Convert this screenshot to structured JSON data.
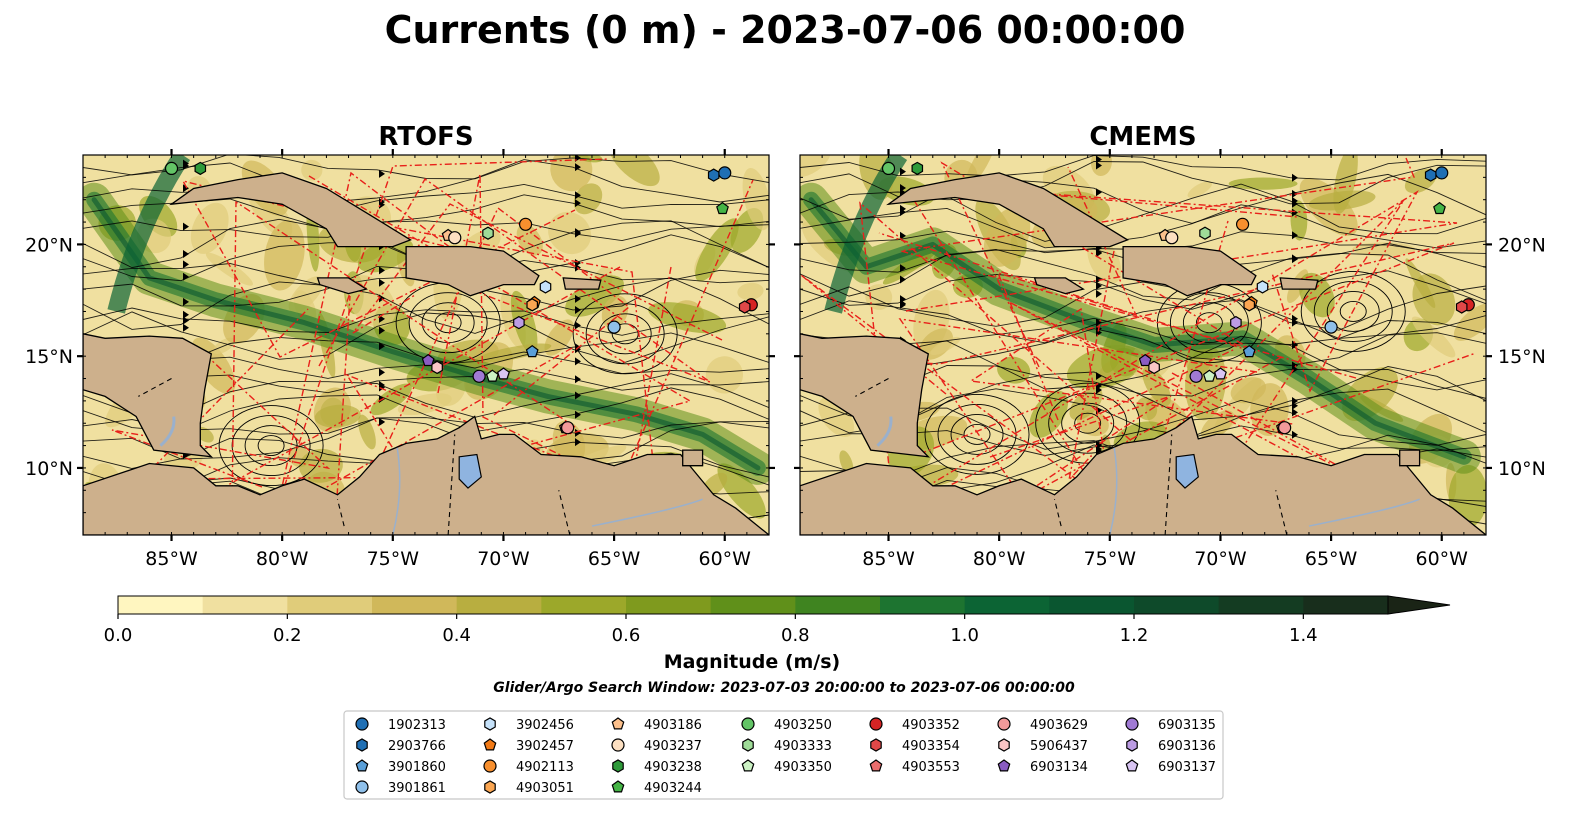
{
  "figure": {
    "title": "Currents (0 m) - 2023-07-06 00:00:00",
    "search_window": "Glider/Argo Search Window: 2023-07-03 20:00:00 to 2023-07-06 00:00:00"
  },
  "colors": {
    "land": "#cdb08c",
    "lake": "#8fb4e0",
    "border_red": "#e8201a",
    "streamline": "#000000",
    "colormap": [
      "#fff6c0",
      "#f0e0a0",
      "#e0cc7a",
      "#d0b85a",
      "#b8ae40",
      "#9ca82a",
      "#7f9a1e",
      "#60901a",
      "#3f8420",
      "#1d7430",
      "#0c6434",
      "#0a5630",
      "#0e4a2a",
      "#143c22",
      "#182e1c",
      "#1a2416"
    ]
  },
  "chart_data": [
    {
      "type": "map",
      "title": "RTOFS",
      "lon_range": [
        -89,
        -58
      ],
      "lat_range": [
        7,
        24
      ],
      "x_ticks": [
        -85,
        -80,
        -75,
        -70,
        -65,
        -60
      ],
      "x_tick_labels": [
        "85°W",
        "80°W",
        "75°W",
        "70°W",
        "65°W",
        "60°W"
      ],
      "y_ticks": [
        10,
        15,
        20
      ],
      "y_tick_labels": [
        "10°N",
        "15°N",
        "20°N"
      ],
      "y_labels_side": "left"
    },
    {
      "type": "map",
      "title": "CMEMS",
      "lon_range": [
        -89,
        -58
      ],
      "lat_range": [
        7,
        24
      ],
      "x_ticks": [
        -85,
        -80,
        -75,
        -70,
        -65,
        -60
      ],
      "x_tick_labels": [
        "85°W",
        "80°W",
        "75°W",
        "70°W",
        "65°W",
        "60°W"
      ],
      "y_ticks": [
        10,
        15,
        20
      ],
      "y_tick_labels": [
        "10°N",
        "15°N",
        "20°N"
      ],
      "y_labels_side": "right"
    }
  ],
  "colorbar": {
    "label": "Magnitude (m/s)",
    "min": 0,
    "max": 1.6,
    "step": 0.1,
    "extend": "max",
    "ticks": [
      0.0,
      0.2,
      0.4,
      0.6,
      0.8,
      1.0,
      1.2,
      1.4
    ],
    "tick_labels": [
      "0.0",
      "0.2",
      "0.4",
      "0.6",
      "0.8",
      "1.0",
      "1.2",
      "1.4"
    ]
  },
  "floats": [
    {
      "id": "1902313",
      "marker": "circle",
      "color": "#1f6fb4",
      "lon": -60,
      "lat": 23.2
    },
    {
      "id": "2903766",
      "marker": "hexagon",
      "color": "#1f6fb4",
      "lon": -60.5,
      "lat": 23.1
    },
    {
      "id": "3901860",
      "marker": "pentagon",
      "color": "#5a9fd8",
      "lon": -68.7,
      "lat": 15.2
    },
    {
      "id": "3901861",
      "marker": "circle",
      "color": "#8fc0ea",
      "lon": -65,
      "lat": 16.3
    },
    {
      "id": "3902456",
      "marker": "hexagon",
      "color": "#c6e2fa",
      "lon": -68.1,
      "lat": 18.1
    },
    {
      "id": "3902457",
      "marker": "pentagon",
      "color": "#f27a16",
      "lon": -68.6,
      "lat": 17.4
    },
    {
      "id": "4902113",
      "marker": "circle",
      "color": "#f78f2e",
      "lon": -69,
      "lat": 20.9
    },
    {
      "id": "4903051",
      "marker": "hexagon",
      "color": "#fba652",
      "lon": -68.7,
      "lat": 17.3
    },
    {
      "id": "4903186",
      "marker": "pentagon",
      "color": "#fcc08c",
      "lon": -72.5,
      "lat": 20.4
    },
    {
      "id": "4903237",
      "marker": "circle",
      "color": "#fde0c2",
      "lon": -72.2,
      "lat": 20.3
    },
    {
      "id": "4903238",
      "marker": "hexagon",
      "color": "#2e9a3a",
      "lon": -83.7,
      "lat": 23.4
    },
    {
      "id": "4903244",
      "marker": "pentagon",
      "color": "#45b446",
      "lon": -60.1,
      "lat": 21.6
    },
    {
      "id": "4903250",
      "marker": "circle",
      "color": "#63c466",
      "lon": -85,
      "lat": 23.4
    },
    {
      "id": "4903333",
      "marker": "hexagon",
      "color": "#9fdc98",
      "lon": -70.7,
      "lat": 20.5
    },
    {
      "id": "4903350",
      "marker": "pentagon",
      "color": "#ccf2c4",
      "lon": -70.5,
      "lat": 14.1
    },
    {
      "id": "4903352",
      "marker": "circle",
      "color": "#d62424",
      "lon": -58.8,
      "lat": 17.3
    },
    {
      "id": "4903354",
      "marker": "hexagon",
      "color": "#e04848",
      "lon": -59.1,
      "lat": 17.2
    },
    {
      "id": "4903553",
      "marker": "pentagon",
      "color": "#eb6e6e",
      "lon": -67.2,
      "lat": 11.8
    },
    {
      "id": "4903629",
      "marker": "circle",
      "color": "#f29a9a",
      "lon": -67.1,
      "lat": 11.8
    },
    {
      "id": "5906437",
      "marker": "hexagon",
      "color": "#fbc6c6",
      "lon": -73,
      "lat": 14.5
    },
    {
      "id": "6903134",
      "marker": "pentagon",
      "color": "#8a5cc2",
      "lon": -73.4,
      "lat": 14.8
    },
    {
      "id": "6903135",
      "marker": "circle",
      "color": "#a07ad4",
      "lon": -71.1,
      "lat": 14.1
    },
    {
      "id": "6903136",
      "marker": "hexagon",
      "color": "#bc9ce4",
      "lon": -69.3,
      "lat": 16.5
    },
    {
      "id": "6903137",
      "marker": "pentagon",
      "color": "#d8c4f2",
      "lon": -70,
      "lat": 14.2
    }
  ]
}
